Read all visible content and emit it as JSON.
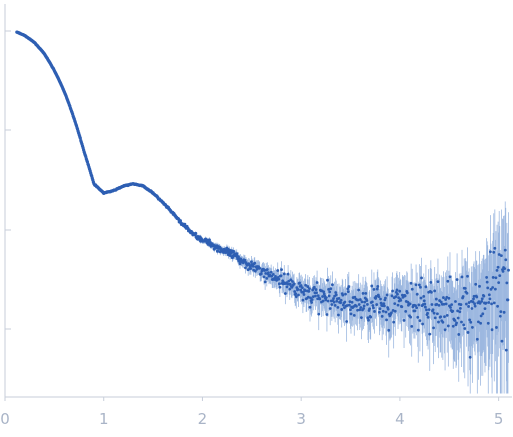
{
  "chart_data": {
    "type": "scatter",
    "title": "",
    "xlabel": "",
    "ylabel": "",
    "xlim": [
      0,
      5.1
    ],
    "ylim": [
      0,
      1
    ],
    "y_scale": "log",
    "grid": false,
    "legend": "none",
    "x_ticks": [
      "0",
      "1",
      "2",
      "3",
      "4",
      "5"
    ],
    "y_ticks": [
      "",
      "",
      "",
      ""
    ],
    "point_color": "#2e5fb3",
    "error_color": "#9db8e0",
    "series": [
      {
        "x": [
          0.12,
          0.2,
          0.3,
          0.4,
          0.5,
          0.6,
          0.7,
          0.8,
          0.9,
          1.0,
          1.1,
          1.2,
          1.3,
          1.4,
          1.5,
          1.6,
          1.7,
          1.8,
          1.9,
          2.0,
          2.2,
          2.4,
          2.6,
          2.8,
          3.0,
          3.2,
          3.4,
          3.6,
          3.8,
          4.0,
          4.2,
          4.4,
          4.6,
          4.8,
          5.0,
          5.1
        ],
        "y": [
          0.92,
          0.9,
          0.86,
          0.8,
          0.72,
          0.63,
          0.53,
          0.43,
          0.35,
          0.33,
          0.335,
          0.345,
          0.35,
          0.345,
          0.33,
          0.31,
          0.29,
          0.27,
          0.255,
          0.245,
          0.23,
          0.215,
          0.2,
          0.19,
          0.178,
          0.17,
          0.165,
          0.163,
          0.163,
          0.163,
          0.162,
          0.16,
          0.16,
          0.163,
          0.17,
          0.175
        ],
        "error": [
          0.001,
          0.001,
          0.001,
          0.001,
          0.001,
          0.001,
          0.001,
          0.001,
          0.001,
          0.001,
          0.001,
          0.001,
          0.001,
          0.001,
          0.001,
          0.002,
          0.002,
          0.003,
          0.003,
          0.004,
          0.005,
          0.007,
          0.009,
          0.011,
          0.013,
          0.015,
          0.017,
          0.019,
          0.021,
          0.023,
          0.026,
          0.03,
          0.035,
          0.045,
          0.07,
          0.09
        ]
      }
    ]
  }
}
